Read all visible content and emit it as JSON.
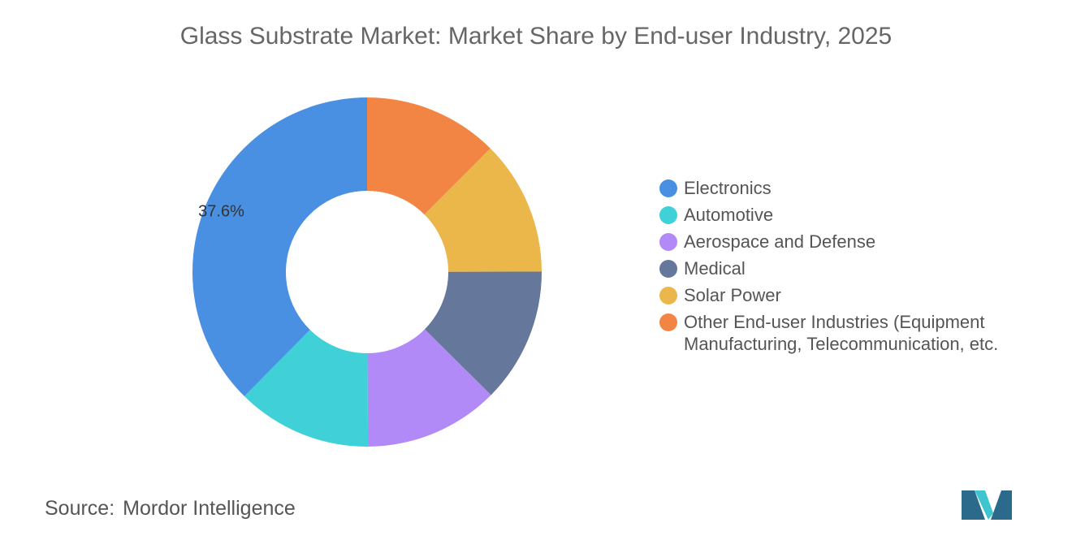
{
  "title": "Glass Substrate Market: Market Share by End-user Industry, 2025",
  "chart_data": {
    "type": "pie",
    "donut": true,
    "title": "Glass Substrate Market: Market Share by End-user Industry, 2025",
    "legend_position": "right",
    "series": [
      {
        "name": "Electronics",
        "value": 37.6,
        "label": "37.6%",
        "color": "#4a90e2"
      },
      {
        "name": "Automotive",
        "value": 12.48,
        "label": "",
        "color": "#40d0d8"
      },
      {
        "name": "Aerospace and Defense",
        "value": 12.48,
        "label": "",
        "color": "#b18af7"
      },
      {
        "name": "Medical",
        "value": 12.48,
        "label": "",
        "color": "#65779a"
      },
      {
        "name": "Solar Power",
        "value": 12.48,
        "label": "",
        "color": "#ebb74a"
      },
      {
        "name": "Other End-user Industries (Equipment Manufacturing, Telecommunication, etc.",
        "value": 12.48,
        "label": "",
        "color": "#f28544"
      }
    ]
  },
  "source": {
    "label": "Source:",
    "value": "Mordor Intelligence"
  },
  "colors": {
    "logo_dark": "#2c6a8c",
    "logo_light": "#3fc5cf"
  },
  "logo_icon": "mordor-intelligence-logo"
}
